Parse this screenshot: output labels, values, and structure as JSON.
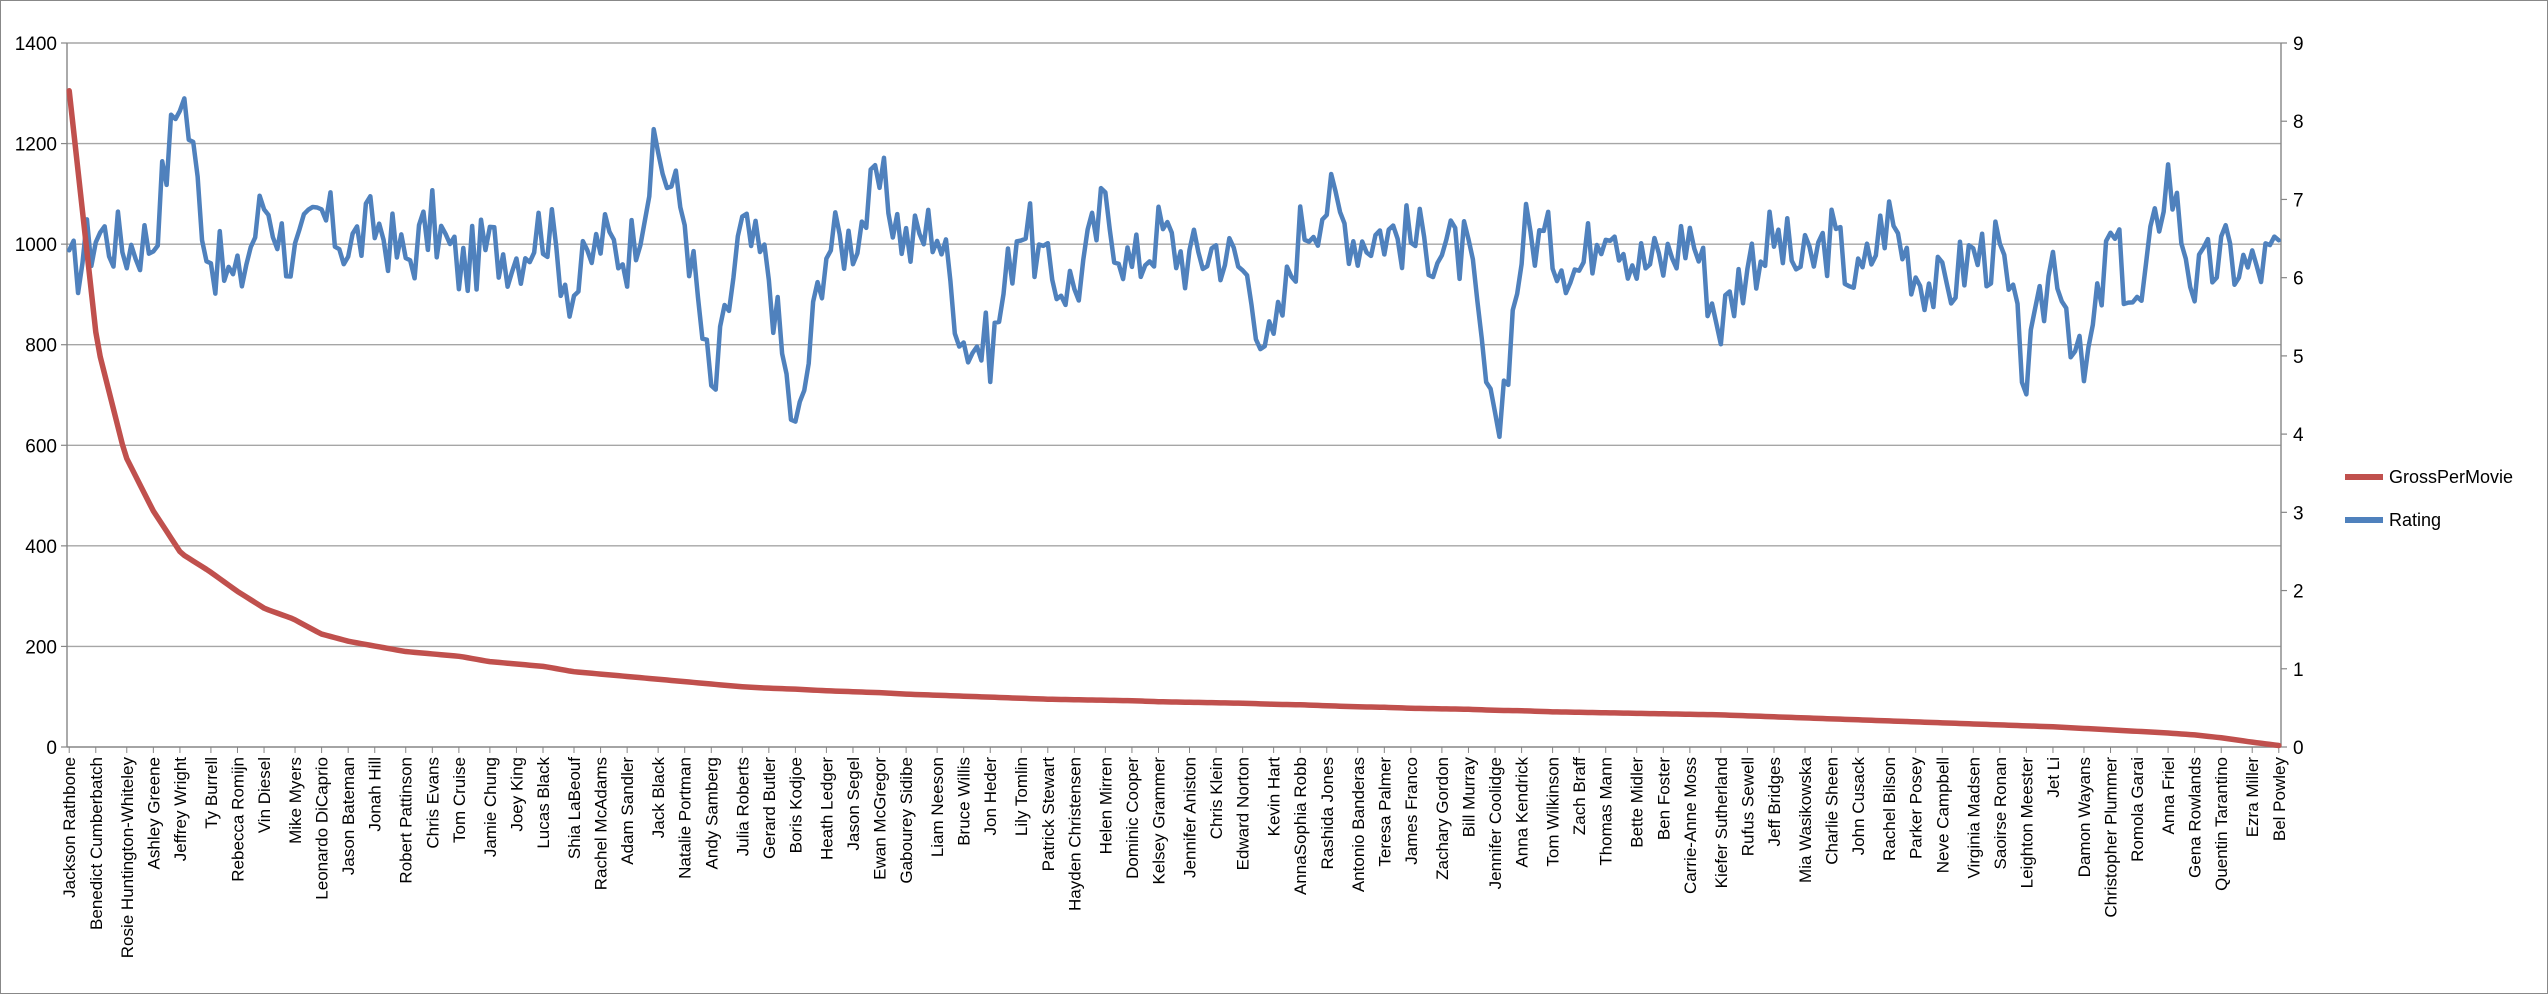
{
  "chart_data": {
    "type": "line",
    "title": "",
    "xlabel": "",
    "ylabel": "",
    "ylim": [
      0,
      1400
    ],
    "y2lim": [
      0,
      9
    ],
    "y_ticks": [
      "0",
      "200",
      "400",
      "600",
      "800",
      "1000",
      "1200",
      "1400"
    ],
    "y2_ticks": [
      "0",
      "1",
      "2",
      "3",
      "4",
      "5",
      "6",
      "7",
      "8",
      "9"
    ],
    "grid": "horizontal",
    "legend_position": "right",
    "colors": {
      "GrossPerMovie": "#C0504D",
      "Rating": "#4F81BD"
    },
    "point_count": 500,
    "categories": [
      "Jackson Rathbone",
      "Benedict Cumberbatch",
      "Rosie Huntington-Whiteley",
      "Ashley Greene",
      "Jeffrey Wright",
      "Ty Burrell",
      "Rebecca Romijn",
      "Vin Diesel",
      "Mike Myers",
      "Leonardo DiCaprio",
      "Jason Bateman",
      "Jonah Hill",
      "Robert Pattinson",
      "Chris Evans",
      "Tom Cruise",
      "Jamie Chung",
      "Joey King",
      "Lucas Black",
      "Shia LaBeouf",
      "Rachel McAdams",
      "Adam Sandler",
      "Jack Black",
      "Natalie Portman",
      "Andy Samberg",
      "Julia Roberts",
      "Gerard Butler",
      "Boris Kodjoe",
      "Heath Ledger",
      "Jason Segel",
      "Ewan McGregor",
      "Gabourey Sidibe",
      "Liam Neeson",
      "Bruce Willis",
      "Jon Heder",
      "Lily Tomlin",
      "Patrick Stewart",
      "Hayden Christensen",
      "Helen Mirren",
      "Dominic Cooper",
      "Kelsey Grammer",
      "Jennifer Aniston",
      "Chris Klein",
      "Edward Norton",
      "Kevin Hart",
      "AnnaSophia Robb",
      "Rashida Jones",
      "Antonio Banderas",
      "Teresa Palmer",
      "James Franco",
      "Zachary Gordon",
      "Bill Murray",
      "Jennifer Coolidge",
      "Anna Kendrick",
      "Tom Wilkinson",
      "Zach Braff",
      "Thomas Mann",
      "Bette Midler",
      "Ben Foster",
      "Carrie-Anne Moss",
      "Kiefer Sutherland",
      "Rufus Sewell",
      "Jeff Bridges",
      "Mia Wasikowska",
      "Charlie Sheen",
      "John Cusack",
      "Rachel Bilson",
      "Parker Posey",
      "Neve Campbell",
      "Virginia Madsen",
      "Saoirse Ronan",
      "Leighton Meester",
      "Jet Li",
      "Damon Wayans",
      "Christopher Plummer",
      "Romola Garai",
      "Anna Friel",
      "Gena Rowlands",
      "Quentin Tarantino",
      "Ezra Miller",
      "Bel Powley"
    ],
    "series": [
      {
        "name": "GrossPerMovie",
        "axis": "left",
        "values_at_categories": [
          1305,
          800,
          580,
          470,
          385,
          350,
          310,
          275,
          255,
          225,
          210,
          200,
          190,
          185,
          180,
          170,
          165,
          160,
          150,
          145,
          140,
          135,
          130,
          125,
          120,
          117,
          115,
          112,
          110,
          108,
          105,
          103,
          101,
          99,
          97,
          95,
          94,
          93,
          92,
          90,
          89,
          88,
          87,
          85,
          84,
          82,
          80,
          79,
          77,
          76,
          75,
          73,
          72,
          70,
          69,
          68,
          67,
          66,
          65,
          64,
          62,
          60,
          58,
          56,
          54,
          52,
          50,
          48,
          46,
          44,
          42,
          40,
          37,
          34,
          31,
          28,
          24,
          18,
          10,
          3
        ]
      },
      {
        "name": "Rating",
        "axis": "right",
        "values_at_categories": [
          6.0,
          6.6,
          6.4,
          6.5,
          8.5,
          6.3,
          5.9,
          7.0,
          6.2,
          6.8,
          6.4,
          6.7,
          6.2,
          6.7,
          6.1,
          6.4,
          6.3,
          6.7,
          5.8,
          6.5,
          6.3,
          7.6,
          6.8,
          4.4,
          6.6,
          6.1,
          3.9,
          6.4,
          6.5,
          7.2,
          6.4,
          6.7,
          5.2,
          5.1,
          6.8,
          6.0,
          5.9,
          6.9,
          6.1,
          6.6,
          6.2,
          6.4,
          6.1,
          5.0,
          6.6,
          7.0,
          6.5,
          6.6,
          6.5,
          6.4,
          6.3,
          3.8,
          6.6,
          6.4,
          6.1,
          6.9,
          6.2,
          6.2,
          6.6,
          5.4,
          6.2,
          6.5,
          6.1,
          6.5,
          5.9,
          6.8,
          6.1,
          5.8,
          6.3,
          6.3,
          4.7,
          6.4,
          4.6,
          6.5,
          5.5,
          7.4,
          5.9,
          6.3,
          6.1,
          6.3
        ]
      }
    ]
  }
}
